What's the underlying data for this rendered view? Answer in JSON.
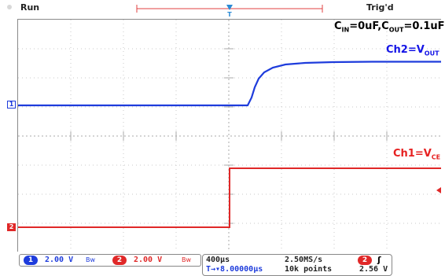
{
  "status": {
    "run_label": "Run",
    "trig_label": "Trig'd"
  },
  "annotations": {
    "caps": {
      "c_in": "C",
      "c_in_sub": "IN",
      "c_in_val": "=0uF,",
      "c_out": "C",
      "c_out_sub": "OUT",
      "c_out_val": "=0.1uF"
    },
    "ch2": {
      "prefix": "Ch2=V",
      "sub": "OUT"
    },
    "ch1": {
      "prefix": "Ch1=V",
      "sub": "CE"
    }
  },
  "markers": {
    "ch2": "1",
    "ch1": "2",
    "trigger_point": "T"
  },
  "bottom": {
    "ch1_num": "1",
    "ch1_scale": "2.00 V",
    "ch1_bw": "Bw",
    "ch2_num": "2",
    "ch2_scale": "2.00 V",
    "ch2_bw": "Bw",
    "timebase": "400µs",
    "delay": "T→▾8.00000µs",
    "sample_rate": "2.50MS/s",
    "record_length": "10k points",
    "trigger_source": "2",
    "trigger_slope": "ʃ",
    "trigger_level": "2.56 V"
  },
  "colors": {
    "ch1_trace": "#1e3cdc",
    "ch2_trace": "#e02828",
    "annotation_blue": "#1414e6",
    "annotation_red": "#e62020"
  }
}
